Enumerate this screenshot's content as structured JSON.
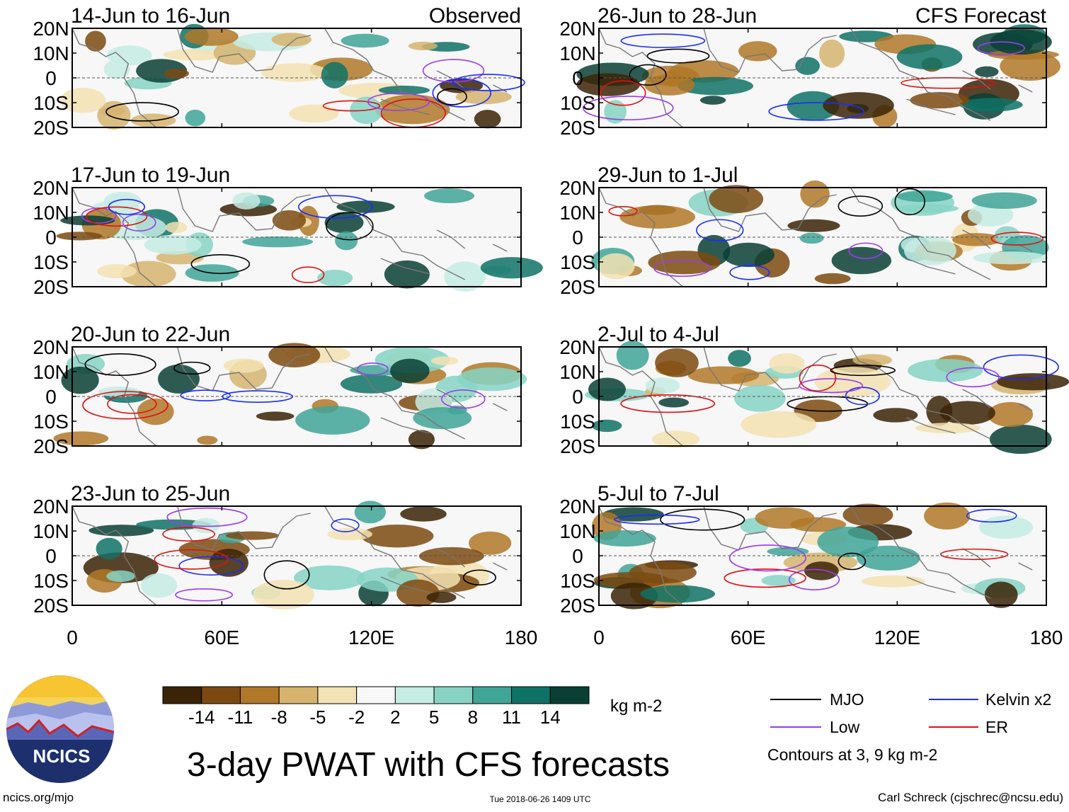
{
  "title": "3-day PWAT with CFS forecasts",
  "colors": {
    "colorbar": [
      "#3b2306",
      "#7c4a10",
      "#b07828",
      "#d6b46e",
      "#f3e2b3",
      "#f8f8f8",
      "#c6ece4",
      "#86d3c4",
      "#3fa597",
      "#0f7266",
      "#093f35"
    ],
    "mjo": "#000000",
    "kelvin": "#1a2cff",
    "low": "#9a3cf0",
    "er": "#e01010",
    "land": "#777777",
    "axis": "#000000"
  },
  "left_column": {
    "header_right": "Observed",
    "panels": [
      {
        "period": "14-Jun to 16-Jun"
      },
      {
        "period": "17-Jun to 19-Jun"
      },
      {
        "period": "20-Jun to 22-Jun"
      },
      {
        "period": "23-Jun to 25-Jun"
      }
    ]
  },
  "right_column": {
    "header_right": "CFS Forecast",
    "panels": [
      {
        "period": "26-Jun to 28-Jun"
      },
      {
        "period": "29-Jun to 1-Jul"
      },
      {
        "period": "2-Jul to 4-Jul"
      },
      {
        "period": "5-Jul to 7-Jul"
      }
    ]
  },
  "lat_labels": [
    "20N",
    "10N",
    "0",
    "10S",
    "20S"
  ],
  "lon_labels": [
    "0",
    "60E",
    "120E",
    "180"
  ],
  "colorbar": {
    "labels": [
      "-14",
      "-11",
      "-8",
      "-5",
      "-2",
      "2",
      "5",
      "8",
      "11",
      "14"
    ],
    "units": "kg m-2"
  },
  "legend": {
    "items": [
      {
        "key": "mjo",
        "label": "MJO"
      },
      {
        "key": "kelvin",
        "label": "Kelvin x2"
      },
      {
        "key": "low",
        "label": "Low"
      },
      {
        "key": "er",
        "label": "ER"
      }
    ],
    "note": "Contours at 3, 9 kg m-2"
  },
  "logo": {
    "text": "NCICS"
  },
  "footer": {
    "left": "ncics.org/mjo",
    "center": "Tue 2018-06-26 1409 UTC",
    "right": "Carl Schreck (cjschrec@ncsu.edu)"
  }
}
